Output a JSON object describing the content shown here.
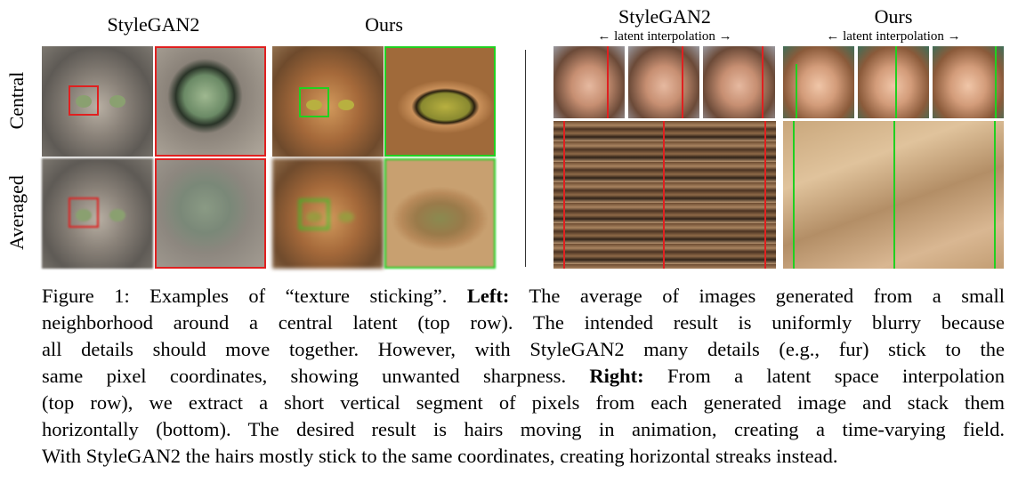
{
  "left": {
    "headers": [
      "StyleGAN2",
      "Ours"
    ],
    "rows": [
      "Central",
      "Averaged"
    ],
    "colors": {
      "stylegan2_box": "#e02020",
      "ours_box": "#20d020"
    }
  },
  "right": {
    "headers": [
      "StyleGAN2",
      "Ours"
    ],
    "subheaders": [
      "← latent interpolation →",
      "← latent interpolation →"
    ]
  },
  "caption": {
    "lines": [
      [
        "Figure 1: Examples of “texture sticking”. ",
        "Left:",
        " The average of images generated from a small"
      ],
      [
        "neighborhood around a central latent (top row). The intended result is uniformly blurry because",
        "",
        ""
      ],
      [
        "all details should move together. However, with StyleGAN2 many details (e.g., fur) stick to the",
        "",
        ""
      ],
      [
        "same pixel coordinates, showing unwanted sharpness. ",
        "Right:",
        " From a latent space interpolation"
      ],
      [
        "(top row), we extract a short vertical segment of pixels from each generated image and stack them",
        "",
        ""
      ],
      [
        "horizontally (bottom). The desired result is hairs moving in animation, creating a time-varying field.",
        "",
        ""
      ],
      [
        "With StyleGAN2 the hairs mostly stick to the same coordinates, creating horizontal streaks instead.",
        "",
        ""
      ]
    ]
  }
}
